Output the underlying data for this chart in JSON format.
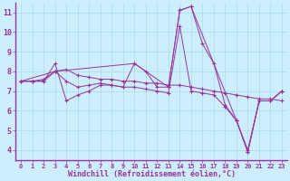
{
  "title": "",
  "xlabel": "Windchill (Refroidissement éolien,°C)",
  "ylabel": "",
  "xlim": [
    -0.5,
    23.5
  ],
  "ylim": [
    3.5,
    11.5
  ],
  "xticks": [
    0,
    1,
    2,
    3,
    4,
    5,
    6,
    7,
    8,
    9,
    10,
    11,
    12,
    13,
    14,
    15,
    16,
    17,
    18,
    19,
    20,
    21,
    22,
    23
  ],
  "yticks": [
    4,
    5,
    6,
    7,
    8,
    9,
    10,
    11
  ],
  "background_color": "#cceeff",
  "grid_color": "#aadddd",
  "line_color": "#993399",
  "axis_color": "#993399",
  "series": [
    {
      "x": [
        0,
        1,
        2,
        3,
        4,
        5,
        6,
        7,
        8,
        9,
        10,
        11,
        12,
        13,
        14,
        15,
        16,
        17,
        18,
        19,
        20,
        21,
        22,
        23
      ],
      "y": [
        7.5,
        7.5,
        7.5,
        8.4,
        6.5,
        6.8,
        7.0,
        7.3,
        7.3,
        7.2,
        8.4,
        8.0,
        7.2,
        7.2,
        11.1,
        11.3,
        9.4,
        8.4,
        6.3,
        5.5,
        3.9,
        6.5,
        6.5,
        7.0
      ]
    },
    {
      "x": [
        0,
        1,
        2,
        3,
        4,
        5,
        6,
        7,
        8,
        9,
        10,
        11,
        12,
        13,
        14,
        15,
        16,
        17,
        18,
        19,
        20,
        21,
        22,
        23
      ],
      "y": [
        7.5,
        7.5,
        7.6,
        8.0,
        8.1,
        7.8,
        7.7,
        7.6,
        7.6,
        7.5,
        7.5,
        7.4,
        7.4,
        7.3,
        7.3,
        7.2,
        7.1,
        7.0,
        6.9,
        6.8,
        6.7,
        6.6,
        6.6,
        6.5
      ]
    },
    {
      "x": [
        0,
        1,
        2,
        3,
        4,
        5,
        6,
        7,
        8,
        9,
        10,
        11,
        12,
        13,
        14,
        15,
        16,
        17,
        18,
        19,
        20,
        21,
        22,
        23
      ],
      "y": [
        7.5,
        7.5,
        7.5,
        8.0,
        7.5,
        7.2,
        7.3,
        7.4,
        7.3,
        7.2,
        7.2,
        7.1,
        7.0,
        6.9,
        10.3,
        7.0,
        6.9,
        6.8,
        6.2,
        5.5,
        4.0,
        6.5,
        6.5,
        7.0
      ]
    },
    {
      "x": [
        0,
        3,
        10,
        13,
        14,
        15,
        19,
        20,
        21,
        22,
        23
      ],
      "y": [
        7.5,
        8.0,
        8.4,
        7.2,
        11.1,
        11.3,
        5.5,
        3.9,
        6.5,
        6.5,
        7.0
      ]
    }
  ]
}
